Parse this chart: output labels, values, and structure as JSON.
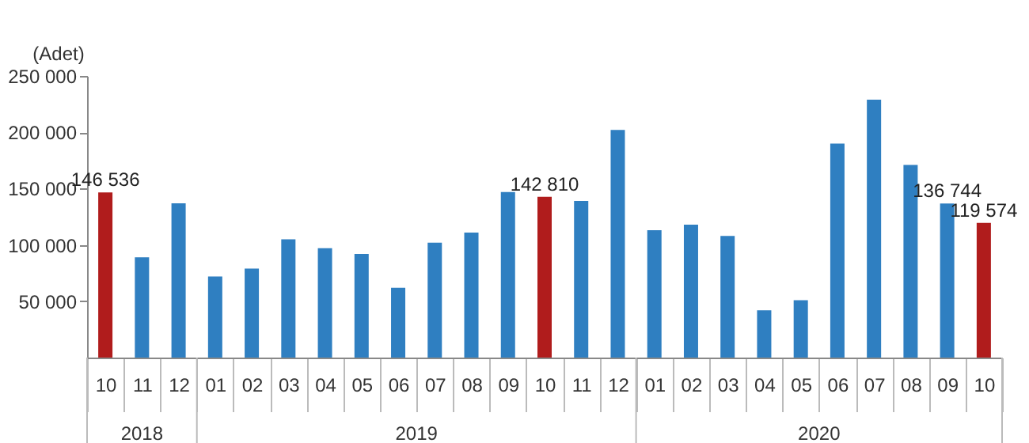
{
  "chart_data": {
    "type": "bar",
    "ylabel": "(Adet)",
    "categories": [
      "10",
      "11",
      "12",
      "01",
      "02",
      "03",
      "04",
      "05",
      "06",
      "07",
      "08",
      "09",
      "10",
      "11",
      "12",
      "01",
      "02",
      "03",
      "04",
      "05",
      "06",
      "07",
      "08",
      "09",
      "10"
    ],
    "values": [
      146536,
      89000,
      137000,
      72000,
      79000,
      105000,
      97000,
      92000,
      62000,
      102000,
      111000,
      147000,
      142810,
      139000,
      202000,
      113000,
      118000,
      108000,
      42000,
      51000,
      190000,
      229000,
      171000,
      136744,
      119574
    ],
    "colors": [
      "#b01c1c",
      "#2f7fc1",
      "#2f7fc1",
      "#2f7fc1",
      "#2f7fc1",
      "#2f7fc1",
      "#2f7fc1",
      "#2f7fc1",
      "#2f7fc1",
      "#2f7fc1",
      "#2f7fc1",
      "#2f7fc1",
      "#b01c1c",
      "#2f7fc1",
      "#2f7fc1",
      "#2f7fc1",
      "#2f7fc1",
      "#2f7fc1",
      "#2f7fc1",
      "#2f7fc1",
      "#2f7fc1",
      "#2f7fc1",
      "#2f7fc1",
      "#2f7fc1",
      "#b01c1c"
    ],
    "value_labels": [
      "146 536",
      null,
      null,
      null,
      null,
      null,
      null,
      null,
      null,
      null,
      null,
      null,
      "142 810",
      null,
      null,
      null,
      null,
      null,
      null,
      null,
      null,
      null,
      null,
      "136 744",
      "119 574"
    ],
    "ylim": [
      0,
      250000
    ],
    "yticks": [
      {
        "value": 50000,
        "label": "50 000"
      },
      {
        "value": 100000,
        "label": "100 000"
      },
      {
        "value": 150000,
        "label": "150 000"
      },
      {
        "value": 200000,
        "label": "200 000"
      },
      {
        "value": 250000,
        "label": "250 000"
      }
    ],
    "annotations": [
      "2018",
      "2019",
      "2020"
    ],
    "grid": false
  }
}
